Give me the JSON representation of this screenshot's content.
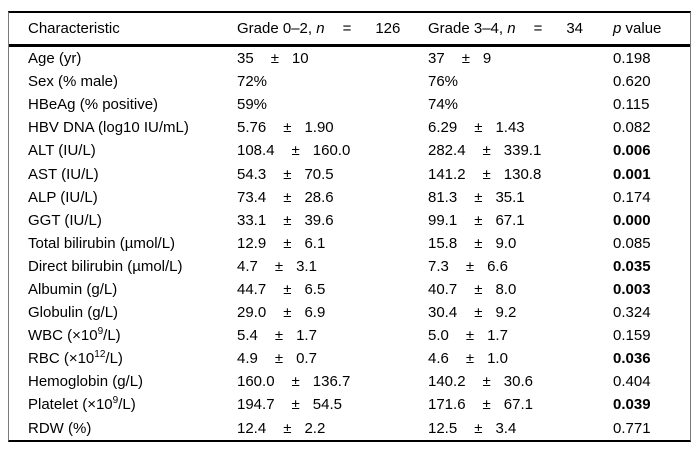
{
  "table": {
    "header": {
      "characteristic": "Characteristic",
      "group1": {
        "label": "Grade 0–2,",
        "n_symbol": "n",
        "equals": "=",
        "count": "126"
      },
      "group2": {
        "label": "Grade 3–4,",
        "n_symbol": "n",
        "equals": "=",
        "count": "34"
      },
      "p_symbol": "p",
      "p_label": "value"
    },
    "rows": [
      {
        "label_pre": "Age (yr)",
        "label_sup": "",
        "label_post": "",
        "g1_mean": "35",
        "g1_pm": "±",
        "g1_sd": "10",
        "g2_mean": "37",
        "g2_pm": "±",
        "g2_sd": "9",
        "p": "0.198",
        "p_bold": false
      },
      {
        "label_pre": "Sex (% male)",
        "label_sup": "",
        "label_post": "",
        "g1_mean": "72%",
        "g1_pm": "",
        "g1_sd": "",
        "g2_mean": "76%",
        "g2_pm": "",
        "g2_sd": "",
        "p": "0.620",
        "p_bold": false
      },
      {
        "label_pre": "HBeAg (% positive)",
        "label_sup": "",
        "label_post": "",
        "g1_mean": "59%",
        "g1_pm": "",
        "g1_sd": "",
        "g2_mean": "74%",
        "g2_pm": "",
        "g2_sd": "",
        "p": "0.115",
        "p_bold": false
      },
      {
        "label_pre": "HBV DNA (log10 IU/mL)",
        "label_sup": "",
        "label_post": "",
        "g1_mean": "5.76",
        "g1_pm": "±",
        "g1_sd": "1.90",
        "g2_mean": "6.29",
        "g2_pm": "±",
        "g2_sd": "1.43",
        "p": "0.082",
        "p_bold": false
      },
      {
        "label_pre": "ALT (IU/L)",
        "label_sup": "",
        "label_post": "",
        "g1_mean": "108.4",
        "g1_pm": "±",
        "g1_sd": "160.0",
        "g2_mean": "282.4",
        "g2_pm": "±",
        "g2_sd": "339.1",
        "p": "0.006",
        "p_bold": true
      },
      {
        "label_pre": "AST (IU/L)",
        "label_sup": "",
        "label_post": "",
        "g1_mean": "54.3",
        "g1_pm": "±",
        "g1_sd": "70.5",
        "g2_mean": "141.2",
        "g2_pm": "±",
        "g2_sd": "130.8",
        "p": "0.001",
        "p_bold": true
      },
      {
        "label_pre": "ALP (IU/L)",
        "label_sup": "",
        "label_post": "",
        "g1_mean": "73.4",
        "g1_pm": "±",
        "g1_sd": "28.6",
        "g2_mean": "81.3",
        "g2_pm": "±",
        "g2_sd": "35.1",
        "p": "0.174",
        "p_bold": false
      },
      {
        "label_pre": "GGT (IU/L)",
        "label_sup": "",
        "label_post": "",
        "g1_mean": "33.1",
        "g1_pm": "±",
        "g1_sd": "39.6",
        "g2_mean": "99.1",
        "g2_pm": "±",
        "g2_sd": "67.1",
        "p": "0.000",
        "p_bold": true
      },
      {
        "label_pre": "Total bilirubin (µmol/L)",
        "label_sup": "",
        "label_post": "",
        "g1_mean": "12.9",
        "g1_pm": "±",
        "g1_sd": "6.1",
        "g2_mean": "15.8",
        "g2_pm": "±",
        "g2_sd": "9.0",
        "p": "0.085",
        "p_bold": false
      },
      {
        "label_pre": "Direct bilirubin (µmol/L)",
        "label_sup": "",
        "label_post": "",
        "g1_mean": "4.7",
        "g1_pm": "±",
        "g1_sd": "3.1",
        "g2_mean": "7.3",
        "g2_pm": "±",
        "g2_sd": "6.6",
        "p": "0.035",
        "p_bold": true
      },
      {
        "label_pre": "Albumin (g/L)",
        "label_sup": "",
        "label_post": "",
        "g1_mean": "44.7",
        "g1_pm": "±",
        "g1_sd": "6.5",
        "g2_mean": "40.7",
        "g2_pm": "±",
        "g2_sd": "8.0",
        "p": "0.003",
        "p_bold": true
      },
      {
        "label_pre": "Globulin (g/L)",
        "label_sup": "",
        "label_post": "",
        "g1_mean": "29.0",
        "g1_pm": "±",
        "g1_sd": "6.9",
        "g2_mean": "30.4",
        "g2_pm": "±",
        "g2_sd": "9.2",
        "p": "0.324",
        "p_bold": false
      },
      {
        "label_pre": "WBC (×10",
        "label_sup": "9",
        "label_post": "/L)",
        "g1_mean": "5.4",
        "g1_pm": "±",
        "g1_sd": "1.7",
        "g2_mean": "5.0",
        "g2_pm": "±",
        "g2_sd": "1.7",
        "p": "0.159",
        "p_bold": false
      },
      {
        "label_pre": "RBC (×10",
        "label_sup": "12",
        "label_post": "/L)",
        "g1_mean": "4.9",
        "g1_pm": "±",
        "g1_sd": "0.7",
        "g2_mean": "4.6",
        "g2_pm": "±",
        "g2_sd": "1.0",
        "p": "0.036",
        "p_bold": true
      },
      {
        "label_pre": "Hemoglobin (g/L)",
        "label_sup": "",
        "label_post": "",
        "g1_mean": "160.0",
        "g1_pm": "±",
        "g1_sd": "136.7",
        "g2_mean": "140.2",
        "g2_pm": "±",
        "g2_sd": "30.6",
        "p": "0.404",
        "p_bold": false
      },
      {
        "label_pre": "Platelet (×10",
        "label_sup": "9",
        "label_post": "/L)",
        "g1_mean": "194.7",
        "g1_pm": "±",
        "g1_sd": "54.5",
        "g2_mean": "171.6",
        "g2_pm": "±",
        "g2_sd": "67.1",
        "p": "0.039",
        "p_bold": true
      },
      {
        "label_pre": "RDW (%)",
        "label_sup": "",
        "label_post": "",
        "g1_mean": "12.4",
        "g1_pm": "±",
        "g1_sd": "2.2",
        "g2_mean": "12.5",
        "g2_pm": "±",
        "g2_sd": "3.4",
        "p": "0.771",
        "p_bold": false
      }
    ]
  }
}
